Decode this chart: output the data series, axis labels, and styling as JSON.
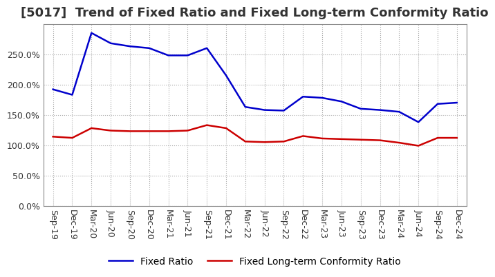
{
  "title": "[5017]  Trend of Fixed Ratio and Fixed Long-term Conformity Ratio",
  "x_labels": [
    "Sep-19",
    "Dec-19",
    "Mar-20",
    "Jun-20",
    "Sep-20",
    "Dec-20",
    "Mar-21",
    "Jun-21",
    "Sep-21",
    "Dec-21",
    "Mar-22",
    "Jun-22",
    "Sep-22",
    "Dec-22",
    "Mar-23",
    "Jun-23",
    "Sep-23",
    "Dec-23",
    "Mar-24",
    "Jun-24",
    "Sep-24",
    "Dec-24"
  ],
  "fixed_ratio": [
    192,
    183,
    285,
    268,
    263,
    260,
    248,
    248,
    260,
    215,
    163,
    158,
    157,
    180,
    178,
    172,
    160,
    158,
    155,
    138,
    168,
    170
  ],
  "fixed_lt_ratio": [
    114,
    112,
    128,
    124,
    123,
    123,
    123,
    124,
    133,
    128,
    106,
    105,
    106,
    115,
    111,
    110,
    109,
    108,
    104,
    99,
    112,
    112
  ],
  "ylim": [
    0,
    300
  ],
  "yticks": [
    0,
    50,
    100,
    150,
    200,
    250
  ],
  "fixed_ratio_color": "#0000cc",
  "fixed_lt_ratio_color": "#cc0000",
  "background_color": "#ffffff",
  "grid_color": "#aaaaaa",
  "title_fontsize": 13,
  "axis_fontsize": 9,
  "legend_fontsize": 10,
  "title_color": "#333333"
}
